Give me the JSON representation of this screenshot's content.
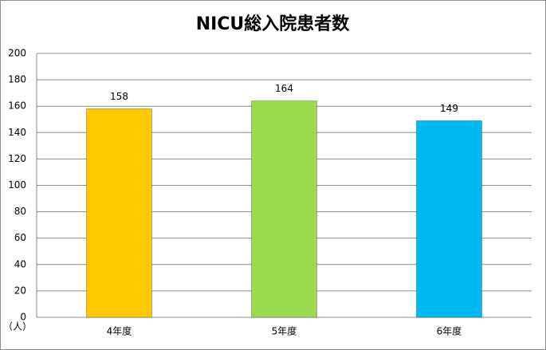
{
  "chart_data": {
    "type": "bar",
    "title": "NICU総入院患者数",
    "categories": [
      "4年度",
      "5年度",
      "6年度"
    ],
    "values": [
      158,
      164,
      149
    ],
    "colors": [
      "#FFC800",
      "#99DB4F",
      "#00B9F1"
    ],
    "y_unit": "（人）",
    "ylim": [
      0,
      200
    ],
    "yticks": [
      0,
      20,
      40,
      60,
      80,
      100,
      120,
      140,
      160,
      180,
      200
    ],
    "grid": true
  }
}
